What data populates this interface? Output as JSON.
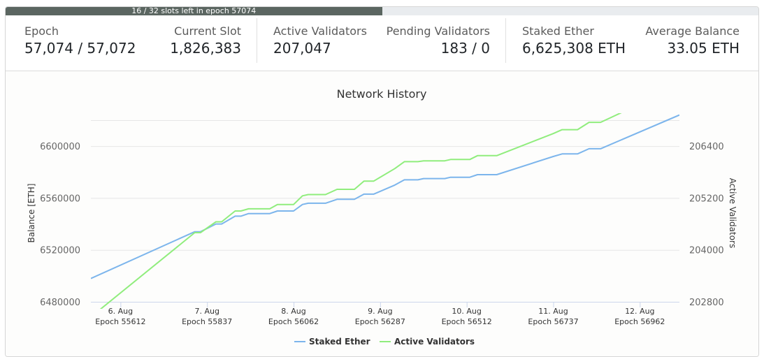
{
  "progress": {
    "text": "16 / 32 slots left in epoch 57074",
    "fraction": 0.5
  },
  "stats": {
    "epoch": {
      "label": "Epoch",
      "value": "57,074 / 57,072"
    },
    "current_slot": {
      "label": "Current Slot",
      "value": "1,826,383"
    },
    "active_validators": {
      "label": "Active Validators",
      "value": "207,047"
    },
    "pending_validators": {
      "label": "Pending Validators",
      "value": "183 / 0"
    },
    "staked_ether": {
      "label": "Staked Ether",
      "value": "6,625,308 ETH"
    },
    "average_balance": {
      "label": "Average Balance",
      "value": "33.05 ETH"
    }
  },
  "colors": {
    "staked_ether": "#7cb5ec",
    "active_validators": "#90ed7d",
    "progress_fill": "#5b6661"
  },
  "chart_data": {
    "type": "line",
    "title": "Network History",
    "ylabel_left": "Balance [ETH]",
    "ylabel_right": "Active Validators",
    "x_labels": [
      [
        "6. Aug",
        "Epoch 55612"
      ],
      [
        "7. Aug",
        "Epoch 55837"
      ],
      [
        "8. Aug",
        "Epoch 56062"
      ],
      [
        "9. Aug",
        "Epoch 56287"
      ],
      [
        "10. Aug",
        "Epoch 56512"
      ],
      [
        "11. Aug",
        "Epoch 56737"
      ],
      [
        "12. Aug",
        "Epoch 56962"
      ]
    ],
    "x_range": [
      55535,
      57065
    ],
    "x_tick_epochs": [
      55612,
      55837,
      56062,
      56287,
      56512,
      56737,
      56962
    ],
    "left_axis": {
      "range": [
        6480000,
        6620000
      ],
      "ticks": [
        6480000,
        6520000,
        6560000,
        6600000
      ]
    },
    "right_axis": {
      "range": [
        202800,
        207000
      ],
      "ticks": [
        202800,
        204000,
        205200,
        206400
      ]
    },
    "legend": [
      "Staked Ether",
      "Active Validators"
    ],
    "legend_position": "bottom-center",
    "series": [
      {
        "name": "Staked Ether",
        "axis": "left",
        "points": [
          [
            55535,
            6498000
          ],
          [
            55805,
            6534000
          ],
          [
            55820,
            6534000
          ],
          [
            55860,
            6540000
          ],
          [
            55875,
            6540000
          ],
          [
            55910,
            6546000
          ],
          [
            55925,
            6546000
          ],
          [
            55945,
            6548000
          ],
          [
            56000,
            6548000
          ],
          [
            56020,
            6550000
          ],
          [
            56062,
            6550000
          ],
          [
            56085,
            6555000
          ],
          [
            56100,
            6556000
          ],
          [
            56145,
            6556000
          ],
          [
            56175,
            6559000
          ],
          [
            56220,
            6559000
          ],
          [
            56245,
            6563000
          ],
          [
            56270,
            6563000
          ],
          [
            56325,
            6570000
          ],
          [
            56350,
            6574000
          ],
          [
            56385,
            6574000
          ],
          [
            56400,
            6575000
          ],
          [
            56455,
            6575000
          ],
          [
            56470,
            6576000
          ],
          [
            56520,
            6576000
          ],
          [
            56540,
            6578000
          ],
          [
            56590,
            6578000
          ],
          [
            56737,
            6592000
          ],
          [
            56760,
            6594000
          ],
          [
            56800,
            6594000
          ],
          [
            56830,
            6598000
          ],
          [
            56860,
            6598000
          ],
          [
            57065,
            6624000
          ]
        ]
      },
      {
        "name": "Active Validators",
        "axis": "right",
        "points": [
          [
            55535,
            202450
          ],
          [
            55805,
            204400
          ],
          [
            55820,
            204400
          ],
          [
            55860,
            204650
          ],
          [
            55875,
            204650
          ],
          [
            55910,
            204900
          ],
          [
            55925,
            204900
          ],
          [
            55945,
            204950
          ],
          [
            56000,
            204950
          ],
          [
            56020,
            205050
          ],
          [
            56062,
            205050
          ],
          [
            56085,
            205250
          ],
          [
            56100,
            205280
          ],
          [
            56145,
            205280
          ],
          [
            56175,
            205400
          ],
          [
            56220,
            205400
          ],
          [
            56245,
            205590
          ],
          [
            56270,
            205590
          ],
          [
            56325,
            205880
          ],
          [
            56350,
            206040
          ],
          [
            56385,
            206040
          ],
          [
            56400,
            206060
          ],
          [
            56455,
            206060
          ],
          [
            56470,
            206090
          ],
          [
            56520,
            206090
          ],
          [
            56540,
            206180
          ],
          [
            56590,
            206180
          ],
          [
            56737,
            206690
          ],
          [
            56760,
            206780
          ],
          [
            56800,
            206780
          ],
          [
            56830,
            206950
          ],
          [
            56860,
            206950
          ],
          [
            57065,
            207800
          ]
        ]
      }
    ]
  }
}
